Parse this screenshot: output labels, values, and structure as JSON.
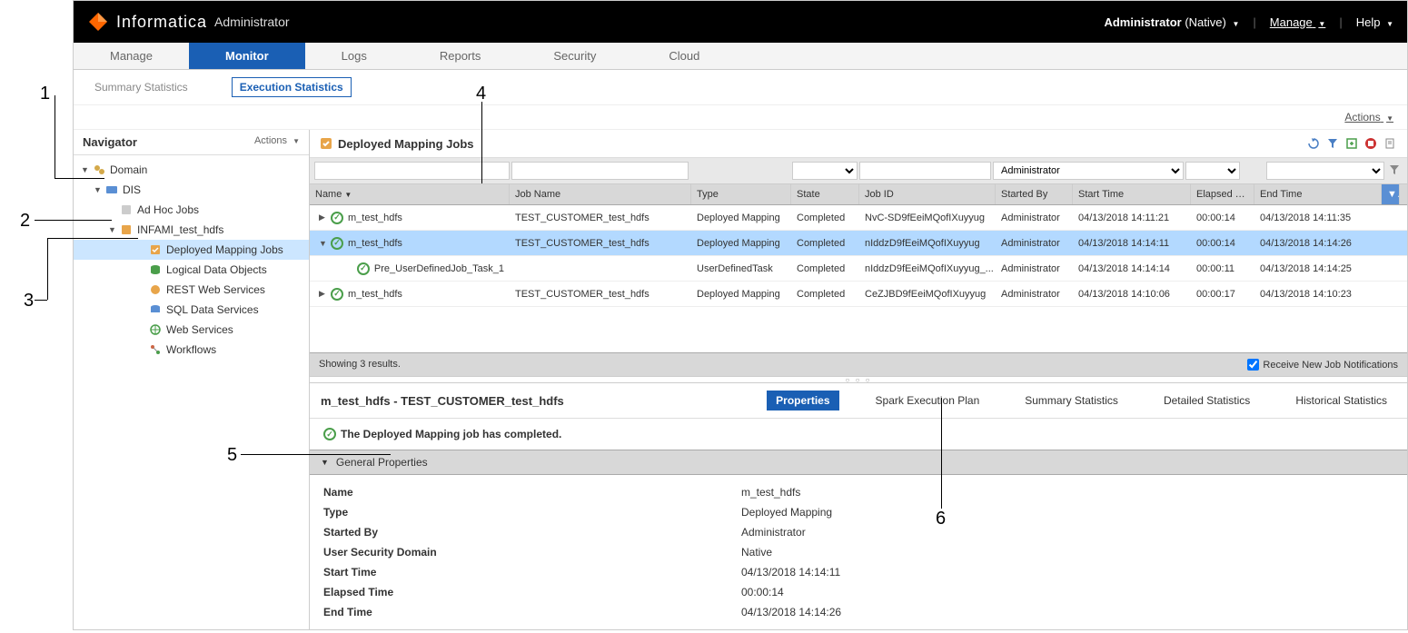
{
  "header": {
    "brand": "Informatica",
    "product": "Administrator",
    "user_label": "Administrator",
    "user_domain": "(Native)",
    "manage": "Manage",
    "help": "Help"
  },
  "main_tabs": [
    "Manage",
    "Monitor",
    "Logs",
    "Reports",
    "Security",
    "Cloud"
  ],
  "main_tab_active": 1,
  "sub_tabs": [
    "Summary Statistics",
    "Execution Statistics"
  ],
  "sub_tab_active": 1,
  "actions_label": "Actions",
  "navigator": {
    "title": "Navigator",
    "actions": "Actions",
    "tree": [
      {
        "indent": 0,
        "toggle": "▼",
        "icon": "domain",
        "label": "Domain"
      },
      {
        "indent": 1,
        "toggle": "▼",
        "icon": "service",
        "label": "DIS"
      },
      {
        "indent": 2,
        "toggle": "",
        "icon": "adhoc",
        "label": "Ad Hoc Jobs"
      },
      {
        "indent": 2,
        "toggle": "▼",
        "icon": "app",
        "label": "INFAMI_test_hdfs"
      },
      {
        "indent": 3,
        "toggle": "",
        "icon": "deployed",
        "label": "Deployed Mapping Jobs",
        "selected": true
      },
      {
        "indent": 3,
        "toggle": "",
        "icon": "ldo",
        "label": "Logical Data Objects"
      },
      {
        "indent": 3,
        "toggle": "",
        "icon": "rest",
        "label": "REST Web Services"
      },
      {
        "indent": 3,
        "toggle": "",
        "icon": "sql",
        "label": "SQL Data Services"
      },
      {
        "indent": 3,
        "toggle": "",
        "icon": "web",
        "label": "Web Services"
      },
      {
        "indent": 3,
        "toggle": "",
        "icon": "wf",
        "label": "Workflows"
      }
    ]
  },
  "panel": {
    "title": "Deployed Mapping Jobs",
    "columns": [
      "Name",
      "Job Name",
      "Type",
      "State",
      "Job ID",
      "Started By",
      "Start Time",
      "Elapsed Ti...",
      "End Time"
    ],
    "filter_started_by": "Administrator",
    "rows": [
      {
        "expand": "▶",
        "name": "m_test_hdfs",
        "job": "TEST_CUSTOMER_test_hdfs",
        "type": "Deployed Mapping",
        "state": "Completed",
        "jobid": "NvC-SD9fEeiMQofIXuyyug",
        "started_by": "Administrator",
        "start": "04/13/2018 14:11:21",
        "elapsed": "00:00:14",
        "end": "04/13/2018 14:11:35"
      },
      {
        "expand": "▼",
        "name": "m_test_hdfs",
        "job": "TEST_CUSTOMER_test_hdfs",
        "type": "Deployed Mapping",
        "state": "Completed",
        "jobid": "nIddzD9fEeiMQofIXuyyug",
        "started_by": "Administrator",
        "start": "04/13/2018 14:14:11",
        "elapsed": "00:00:14",
        "end": "04/13/2018 14:14:26",
        "selected": true
      },
      {
        "expand": "",
        "child": true,
        "name": "Pre_UserDefinedJob_Task_1",
        "job": "",
        "type": "UserDefinedTask",
        "state": "Completed",
        "jobid": "nIddzD9fEeiMQofIXuyyug_...",
        "started_by": "Administrator",
        "start": "04/13/2018 14:14:14",
        "elapsed": "00:00:11",
        "end": "04/13/2018 14:14:25"
      },
      {
        "expand": "▶",
        "name": "m_test_hdfs",
        "job": "TEST_CUSTOMER_test_hdfs",
        "type": "Deployed Mapping",
        "state": "Completed",
        "jobid": "CeZJBD9fEeiMQofIXuyyug",
        "started_by": "Administrator",
        "start": "04/13/2018 14:10:06",
        "elapsed": "00:00:17",
        "end": "04/13/2018 14:10:23"
      }
    ],
    "results_text": "Showing 3 results.",
    "notify_label": "Receive New Job Notifications"
  },
  "detail": {
    "title": "m_test_hdfs - TEST_CUSTOMER_test_hdfs",
    "tabs": [
      "Properties",
      "Spark Execution Plan",
      "Summary Statistics",
      "Detailed Statistics",
      "Historical Statistics"
    ],
    "tab_active": 0,
    "status_msg": "The Deployed Mapping job has completed.",
    "section_title": "General Properties",
    "props": [
      {
        "label": "Name",
        "value": "m_test_hdfs"
      },
      {
        "label": "Type",
        "value": "Deployed Mapping"
      },
      {
        "label": "Started By",
        "value": "Administrator"
      },
      {
        "label": "User Security Domain",
        "value": "Native"
      },
      {
        "label": "Start Time",
        "value": "04/13/2018 14:14:11"
      },
      {
        "label": "Elapsed Time",
        "value": "00:00:14"
      },
      {
        "label": "End Time",
        "value": "04/13/2018 14:14:26"
      }
    ]
  },
  "callouts": [
    "1",
    "2",
    "3",
    "4",
    "5",
    "6"
  ]
}
